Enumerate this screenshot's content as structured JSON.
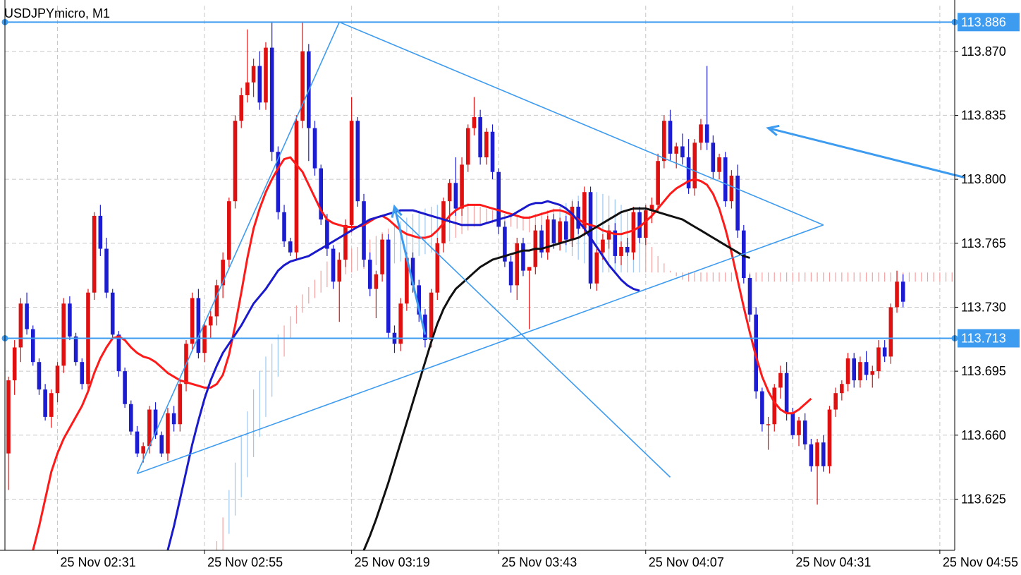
{
  "window": {
    "symbol_title": "USDJPYmicro, M1"
  },
  "colors": {
    "background": "#ffffff",
    "grid": "#c8c8c8",
    "bull_candle": "#e01010",
    "bear_candle": "#1c1cd0",
    "ma_fast": "#ff1a1a",
    "ma_mid": "#1a1acc",
    "ma_slow": "#111111",
    "cloud_bear": "#f5a0a0",
    "cloud_bull": "#9cc8f0",
    "drawing": "#3d9bf0"
  },
  "chart_data": {
    "type": "candlestick",
    "symbol": "USDJPYmicro",
    "timeframe": "M1",
    "grid": true,
    "ylim": [
      113.597,
      113.895
    ],
    "price_ticks": [
      "113.870",
      "113.835",
      "113.800",
      "113.765",
      "113.730",
      "113.695",
      "113.660",
      "113.625"
    ],
    "time_ticks": [
      {
        "label": "25 Nov 02:31",
        "index": 8
      },
      {
        "label": "25 Nov 02:55",
        "index": 32
      },
      {
        "label": "25 Nov 03:19",
        "index": 56
      },
      {
        "label": "25 Nov 03:43",
        "index": 80
      },
      {
        "label": "25 Nov 04:07",
        "index": 104
      },
      {
        "label": "25 Nov 04:31",
        "index": 128
      },
      {
        "label": "25 Nov 04:55",
        "index": 152
      }
    ],
    "horizontal_lines": [
      {
        "price": 113.886,
        "label": "113.886"
      },
      {
        "price": 113.713,
        "label": "113.713"
      }
    ],
    "trend_lines": [
      {
        "from": [
          21,
          113.639
        ],
        "to": [
          54,
          113.886
        ]
      },
      {
        "from": [
          21,
          113.639
        ],
        "to": [
          133,
          113.775
        ]
      },
      {
        "from": [
          133,
          113.775
        ],
        "to": [
          54,
          113.886
        ]
      },
      {
        "from": [
          63,
          113.782
        ],
        "to": [
          108,
          113.637
        ]
      }
    ],
    "arrows": [
      {
        "from": [
          156,
          113.801
        ],
        "to": [
          124,
          113.828
        ]
      },
      {
        "from": [
          68,
          113.715
        ],
        "to": [
          63,
          113.785
        ]
      }
    ],
    "candles": [
      [
        113.65,
        113.692,
        113.63,
        113.69
      ],
      [
        113.69,
        113.712,
        113.682,
        113.708
      ],
      [
        113.708,
        113.735,
        113.7,
        113.732
      ],
      [
        113.732,
        113.738,
        113.715,
        113.718
      ],
      [
        113.718,
        113.72,
        113.698,
        113.7
      ],
      [
        113.7,
        113.702,
        113.682,
        113.685
      ],
      [
        113.685,
        113.688,
        113.668,
        113.67
      ],
      [
        113.67,
        113.685,
        113.664,
        113.683
      ],
      [
        113.683,
        113.7,
        113.678,
        113.698
      ],
      [
        113.698,
        113.735,
        113.694,
        113.732
      ],
      [
        113.732,
        113.736,
        113.712,
        113.714
      ],
      [
        113.714,
        113.716,
        113.698,
        113.7
      ],
      [
        113.7,
        113.702,
        113.685,
        113.688
      ],
      [
        113.688,
        113.74,
        113.684,
        113.738
      ],
      [
        113.738,
        113.782,
        113.734,
        113.78
      ],
      [
        113.78,
        113.786,
        113.758,
        113.762
      ],
      [
        113.762,
        113.768,
        113.735,
        113.738
      ],
      [
        113.738,
        113.74,
        113.712,
        113.715
      ],
      [
        113.715,
        113.717,
        113.692,
        113.695
      ],
      [
        113.695,
        113.697,
        113.675,
        113.677
      ],
      [
        113.677,
        113.679,
        113.66,
        113.662
      ],
      [
        113.662,
        113.665,
        113.648,
        113.65
      ],
      [
        113.65,
        113.656,
        113.645,
        113.654
      ],
      [
        113.654,
        113.676,
        113.65,
        113.674
      ],
      [
        113.674,
        113.678,
        113.658,
        113.66
      ],
      [
        113.66,
        113.662,
        113.648,
        113.65
      ],
      [
        113.65,
        113.675,
        113.646,
        113.672
      ],
      [
        113.672,
        113.676,
        113.662,
        113.666
      ],
      [
        113.666,
        113.69,
        113.662,
        113.688
      ],
      [
        113.688,
        113.712,
        113.684,
        113.71
      ],
      [
        113.71,
        113.738,
        113.706,
        113.735
      ],
      [
        113.735,
        113.74,
        113.702,
        113.705
      ],
      [
        113.705,
        113.722,
        113.7,
        113.72
      ],
      [
        113.72,
        113.728,
        113.713,
        113.725
      ],
      [
        113.725,
        113.745,
        113.72,
        113.742
      ],
      [
        113.742,
        113.76,
        113.735,
        113.756
      ],
      [
        113.756,
        113.79,
        113.752,
        113.788
      ],
      [
        113.788,
        113.835,
        113.784,
        113.832
      ],
      [
        113.832,
        113.85,
        113.828,
        113.846
      ],
      [
        113.846,
        113.882,
        113.842,
        113.853
      ],
      [
        113.853,
        113.866,
        113.845,
        113.862
      ],
      [
        113.862,
        113.87,
        113.838,
        113.842
      ],
      [
        113.842,
        113.875,
        113.838,
        113.872
      ],
      [
        113.872,
        113.886,
        113.81,
        113.815
      ],
      [
        113.815,
        113.818,
        113.778,
        113.782
      ],
      [
        113.782,
        113.786,
        113.763,
        113.766
      ],
      [
        113.766,
        113.768,
        113.758,
        113.76
      ],
      [
        113.76,
        113.835,
        113.756,
        113.832
      ],
      [
        113.832,
        113.886,
        113.828,
        113.87
      ],
      [
        113.87,
        113.874,
        113.81,
        113.828
      ],
      [
        113.828,
        113.832,
        113.802,
        113.806
      ],
      [
        113.806,
        113.808,
        113.775,
        113.778
      ],
      [
        113.778,
        113.781,
        113.758,
        113.762
      ],
      [
        113.762,
        113.764,
        113.74,
        113.744
      ],
      [
        113.744,
        113.76,
        113.722,
        113.756
      ],
      [
        113.756,
        113.778,
        113.752,
        113.775
      ],
      [
        113.775,
        113.845,
        113.771,
        113.832
      ],
      [
        113.832,
        113.834,
        113.785,
        113.788
      ],
      [
        113.788,
        113.792,
        113.752,
        113.756
      ],
      [
        113.756,
        113.76,
        113.736,
        113.74
      ],
      [
        113.74,
        113.75,
        113.724,
        113.748
      ],
      [
        113.748,
        113.77,
        113.744,
        113.767
      ],
      [
        113.767,
        113.77,
        113.713,
        113.716
      ],
      [
        113.716,
        113.72,
        113.705,
        113.71
      ],
      [
        113.71,
        113.735,
        113.706,
        113.732
      ],
      [
        113.732,
        113.76,
        113.728,
        113.757
      ],
      [
        113.757,
        113.76,
        113.738,
        113.742
      ],
      [
        113.742,
        113.745,
        113.722,
        113.726
      ],
      [
        113.726,
        113.729,
        113.708,
        113.712
      ],
      [
        113.712,
        113.74,
        113.708,
        113.738
      ],
      [
        113.738,
        113.768,
        113.734,
        113.765
      ],
      [
        113.765,
        113.79,
        113.76,
        113.788
      ],
      [
        113.788,
        113.8,
        113.776,
        113.798
      ],
      [
        113.798,
        113.812,
        113.78,
        113.784
      ],
      [
        113.784,
        113.812,
        113.78,
        113.808
      ],
      [
        113.808,
        113.83,
        113.804,
        113.828
      ],
      [
        113.828,
        113.845,
        113.824,
        113.834
      ],
      [
        113.834,
        113.838,
        113.808,
        113.812
      ],
      [
        113.812,
        113.828,
        113.808,
        113.826
      ],
      [
        113.826,
        113.83,
        113.8,
        113.804
      ],
      [
        113.804,
        113.806,
        113.77,
        113.774
      ],
      [
        113.774,
        113.777,
        113.752,
        113.755
      ],
      [
        113.755,
        113.758,
        113.738,
        113.742
      ],
      [
        113.742,
        113.768,
        113.734,
        113.765
      ],
      [
        113.765,
        113.768,
        113.747,
        113.75
      ],
      [
        113.75,
        113.752,
        113.718,
        113.752
      ],
      [
        113.752,
        113.775,
        113.748,
        113.772
      ],
      [
        113.772,
        113.775,
        113.757,
        113.76
      ],
      [
        113.76,
        113.78,
        113.756,
        113.778
      ],
      [
        113.778,
        113.781,
        113.762,
        113.765
      ],
      [
        113.765,
        113.779,
        113.761,
        113.777
      ],
      [
        113.777,
        113.78,
        113.764,
        113.767
      ],
      [
        113.767,
        113.788,
        113.763,
        113.785
      ],
      [
        113.785,
        113.788,
        113.77,
        113.773
      ],
      [
        113.773,
        113.796,
        113.769,
        113.793
      ],
      [
        113.793,
        113.796,
        113.74,
        113.743
      ],
      [
        113.743,
        113.762,
        113.739,
        113.76
      ],
      [
        113.76,
        113.77,
        113.756,
        113.767
      ],
      [
        113.767,
        113.775,
        113.762,
        113.772
      ],
      [
        113.772,
        113.776,
        113.754,
        113.758
      ],
      [
        113.758,
        113.766,
        113.753,
        113.763
      ],
      [
        113.763,
        113.768,
        113.758,
        113.76
      ],
      [
        113.76,
        113.785,
        113.756,
        113.782
      ],
      [
        113.782,
        113.785,
        113.765,
        113.768
      ],
      [
        113.768,
        113.786,
        113.764,
        113.783
      ],
      [
        113.783,
        113.79,
        113.776,
        113.786
      ],
      [
        113.786,
        113.814,
        113.782,
        113.81
      ],
      [
        113.81,
        113.835,
        113.806,
        113.832
      ],
      [
        113.832,
        113.838,
        113.81,
        113.814
      ],
      [
        113.814,
        113.82,
        113.806,
        113.818
      ],
      [
        113.818,
        113.825,
        113.808,
        113.812
      ],
      [
        113.812,
        113.822,
        113.792,
        113.795
      ],
      [
        113.795,
        113.822,
        113.791,
        113.82
      ],
      [
        113.82,
        113.833,
        113.816,
        113.83
      ],
      [
        113.83,
        113.862,
        113.816,
        113.82
      ],
      [
        113.82,
        113.824,
        113.8,
        113.804
      ],
      [
        113.804,
        113.814,
        113.8,
        113.812
      ],
      [
        113.812,
        113.815,
        113.785,
        113.788
      ],
      [
        113.788,
        113.805,
        113.784,
        113.802
      ],
      [
        113.802,
        113.808,
        113.768,
        113.772
      ],
      [
        113.772,
        113.775,
        113.743,
        113.746
      ],
      [
        113.746,
        113.748,
        113.722,
        113.726
      ],
      [
        113.726,
        113.73,
        113.68,
        113.684
      ],
      [
        113.684,
        113.686,
        113.662,
        113.666
      ],
      [
        113.666,
        113.67,
        113.652,
        113.666
      ],
      [
        113.666,
        113.688,
        113.662,
        113.686
      ],
      [
        113.686,
        113.698,
        113.68,
        113.694
      ],
      [
        113.694,
        113.7,
        113.668,
        113.672
      ],
      [
        113.672,
        113.675,
        113.658,
        113.66
      ],
      [
        113.66,
        113.67,
        113.654,
        113.668
      ],
      [
        113.668,
        113.672,
        113.652,
        113.655
      ],
      [
        113.655,
        113.658,
        113.64,
        113.643
      ],
      [
        113.643,
        113.658,
        113.622,
        113.656
      ],
      [
        113.656,
        113.66,
        113.64,
        113.643
      ],
      [
        113.643,
        113.676,
        113.639,
        113.674
      ],
      [
        113.674,
        113.686,
        113.67,
        113.683
      ],
      [
        113.683,
        113.69,
        113.679,
        113.688
      ],
      [
        113.688,
        113.705,
        113.684,
        113.702
      ],
      [
        113.702,
        113.705,
        113.686,
        113.69
      ],
      [
        113.69,
        113.703,
        113.686,
        113.7
      ],
      [
        113.7,
        113.706,
        113.69,
        113.693
      ],
      [
        113.693,
        113.698,
        113.686,
        113.695
      ],
      [
        113.695,
        113.712,
        113.691,
        113.708
      ],
      [
        113.708,
        113.712,
        113.7,
        113.703
      ],
      [
        113.703,
        113.732,
        113.699,
        113.73
      ],
      [
        113.73,
        113.75,
        113.727,
        113.744
      ],
      [
        113.744,
        113.748,
        113.73,
        113.733
      ]
    ],
    "indicators": {
      "ma_fast": [
        113.597,
        113.61,
        113.625,
        113.64,
        113.65,
        113.658,
        113.664,
        113.67,
        113.676,
        113.684,
        113.694,
        113.702,
        113.708,
        113.713,
        113.714,
        113.712,
        113.708,
        113.705,
        113.703,
        113.702,
        113.7,
        113.697,
        113.694,
        113.692,
        113.69,
        113.689,
        113.688,
        113.687,
        113.686,
        113.686,
        113.688,
        113.693,
        113.704,
        113.72,
        113.738,
        113.757,
        113.773,
        113.784,
        113.793,
        113.8,
        113.806,
        113.811,
        113.812,
        113.808,
        113.804,
        113.797,
        113.79,
        113.783,
        113.778,
        113.776,
        113.775,
        113.774,
        113.774,
        113.774,
        113.775,
        113.777,
        113.779,
        113.78,
        113.778,
        113.775,
        113.772,
        113.77,
        113.769,
        113.768,
        113.768,
        113.769,
        113.772,
        113.776,
        113.78,
        113.783,
        113.785,
        113.786,
        113.786,
        113.786,
        113.785,
        113.784,
        113.783,
        113.782,
        113.781,
        113.78,
        113.779,
        113.779,
        113.78,
        113.781,
        113.782,
        113.783,
        113.783,
        113.782,
        113.78,
        113.778,
        113.776,
        113.775,
        113.774,
        113.772,
        113.771,
        113.77,
        113.77,
        113.771,
        113.772,
        113.774,
        113.777,
        113.78,
        113.784,
        113.788,
        113.792,
        113.795,
        113.797,
        113.799,
        113.8,
        113.799,
        113.797,
        113.792,
        113.784,
        113.773,
        113.76,
        113.745,
        113.73,
        113.716,
        113.703,
        113.692,
        113.684,
        113.678,
        113.674,
        113.672,
        113.672,
        113.674,
        113.677,
        113.68
      ],
      "ma_mid": [
        113.597,
        113.61,
        113.625,
        113.64,
        113.655,
        113.668,
        113.68,
        113.69,
        113.698,
        113.705,
        113.71,
        113.715,
        113.72,
        113.726,
        113.732,
        113.736,
        113.74,
        113.745,
        113.75,
        113.753,
        113.755,
        113.756,
        113.757,
        113.758,
        113.76,
        113.762,
        113.764,
        113.766,
        113.768,
        113.77,
        113.772,
        113.774,
        113.776,
        113.778,
        113.779,
        113.78,
        113.781,
        113.782,
        113.783,
        113.783,
        113.783,
        113.782,
        113.781,
        113.78,
        113.779,
        113.778,
        113.777,
        113.776,
        113.775,
        113.775,
        113.775,
        113.775,
        113.776,
        113.777,
        113.778,
        113.779,
        113.78,
        113.782,
        113.784,
        113.786,
        113.787,
        113.787,
        113.788,
        113.787,
        113.786,
        113.784,
        113.781,
        113.777,
        113.773,
        113.768,
        113.763,
        113.758,
        113.753,
        113.749,
        113.745,
        113.742,
        113.74,
        113.739
      ],
      "ma_slow": [
        113.597,
        113.605,
        113.614,
        113.624,
        113.634,
        113.645,
        113.656,
        113.667,
        113.678,
        113.689,
        113.7,
        113.711,
        113.721,
        113.729,
        113.735,
        113.74,
        113.743,
        113.746,
        113.749,
        113.752,
        113.754,
        113.756,
        113.757,
        113.758,
        113.759,
        113.76,
        113.761,
        113.761,
        113.762,
        113.762,
        113.763,
        113.764,
        113.765,
        113.766,
        113.767,
        113.768,
        113.77,
        113.772,
        113.774,
        113.776,
        113.778,
        113.78,
        113.782,
        113.783,
        113.784,
        113.784,
        113.784,
        113.783,
        113.782,
        113.781,
        113.78,
        113.779,
        113.778,
        113.776,
        113.774,
        113.772,
        113.77,
        113.768,
        113.766,
        113.764,
        113.762,
        113.76,
        113.758,
        113.757
      ]
    }
  }
}
